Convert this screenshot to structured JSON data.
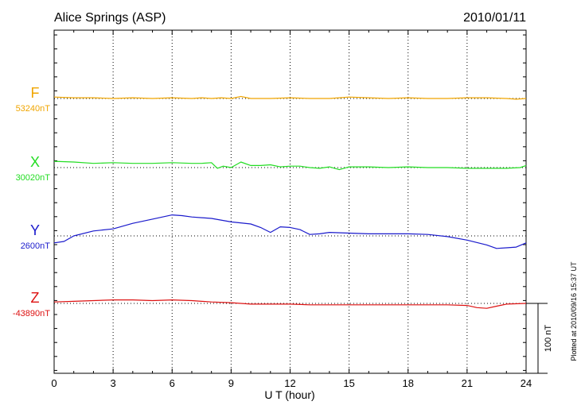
{
  "header": {
    "station": "Alice Springs (ASP)",
    "date": "2010/01/11"
  },
  "scale_bar_label": "100 nT",
  "plotted_note": "Plotted at 2010/09/16 15:37 UT",
  "chart_data": {
    "type": "line",
    "title": "Alice Springs (ASP)",
    "xlabel": "U T (hour)",
    "ylabel": "",
    "xlim": [
      0,
      24
    ],
    "x_ticks": [
      "0",
      "3",
      "6",
      "9",
      "12",
      "15",
      "18",
      "21",
      "24"
    ],
    "grid": true,
    "scale_nT": 100,
    "series": [
      {
        "name": "F",
        "baseline_label": "53240nT",
        "color": "#f0a500",
        "offset_from_top_nT": 0,
        "x": [
          0,
          1,
          2,
          3,
          4,
          5,
          6,
          7,
          7.5,
          8,
          8.5,
          9,
          9.5,
          10,
          11,
          12,
          13,
          14,
          14.5,
          15,
          16,
          17,
          18,
          19,
          20,
          21,
          22,
          23,
          23.5,
          24
        ],
        "y": [
          2,
          1,
          1,
          0,
          1,
          0,
          1,
          0,
          1,
          0,
          1,
          0,
          3,
          0,
          0,
          1,
          0,
          0,
          1,
          2,
          1,
          0,
          1,
          0,
          0,
          1,
          1,
          0,
          -1,
          0
        ]
      },
      {
        "name": "X",
        "baseline_label": "30020nT",
        "color": "#22dd22",
        "x": [
          0,
          1,
          2,
          3,
          4,
          5,
          6,
          7,
          7.5,
          8,
          8.3,
          8.6,
          9,
          9.5,
          10,
          10.5,
          11,
          11.5,
          12,
          12.5,
          13,
          13.5,
          14,
          14.5,
          15,
          16,
          17,
          18,
          19,
          20,
          21,
          22,
          23,
          23.7,
          24
        ],
        "y": [
          9,
          8,
          6,
          7,
          6,
          6,
          7,
          6,
          6,
          7,
          -1,
          2,
          0,
          8,
          3,
          3,
          4,
          1,
          2,
          2,
          0,
          -1,
          1,
          -3,
          1,
          1,
          0,
          1,
          0,
          0,
          -1,
          -1,
          -1,
          0,
          3
        ]
      },
      {
        "name": "Y",
        "baseline_label": "2600nT",
        "color": "#1a1acc",
        "x": [
          0,
          0.5,
          1,
          2,
          3,
          4,
          5,
          6,
          6.5,
          7,
          8,
          9,
          10,
          10.5,
          11,
          11.5,
          12,
          12.5,
          13,
          13.5,
          14,
          15,
          16,
          17,
          18,
          19,
          20,
          21,
          22,
          22.5,
          23,
          23.5,
          24
        ],
        "y": [
          -10,
          -8,
          0,
          7,
          10,
          18,
          24,
          30,
          29,
          27,
          25,
          20,
          17,
          12,
          5,
          13,
          12,
          9,
          2,
          3,
          5,
          4,
          3,
          3,
          3,
          2,
          -1,
          -6,
          -13,
          -18,
          -17,
          -16,
          -10
        ]
      },
      {
        "name": "Z",
        "baseline_label": "-43890nT",
        "color": "#dd1111",
        "x": [
          0,
          1,
          2,
          3,
          4,
          5,
          6,
          7,
          8,
          9,
          10,
          11,
          12,
          13,
          14,
          15,
          16,
          17,
          18,
          19,
          20,
          21,
          21.5,
          22,
          22.5,
          23,
          24
        ],
        "y": [
          2,
          3,
          4,
          5,
          5,
          4,
          5,
          4,
          2,
          1,
          -1,
          -1,
          -1,
          -2,
          -2,
          -2,
          -2,
          -2,
          -2,
          -2,
          -2,
          -3,
          -6,
          -7,
          -4,
          -1,
          0
        ]
      }
    ]
  }
}
